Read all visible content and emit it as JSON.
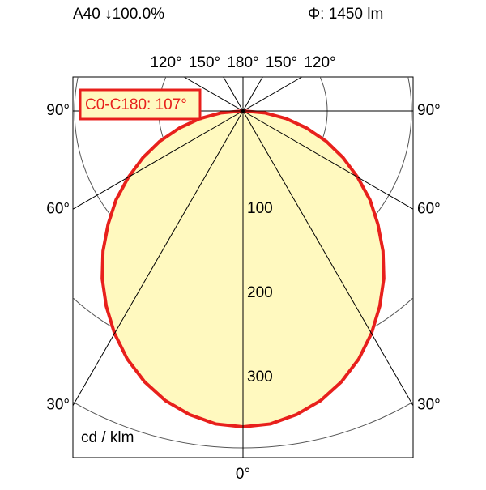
{
  "chart_data": {
    "type": "polar",
    "header_left": "A40 ↓100.0%",
    "header_right": "Φ: 1450 lm",
    "plane_label": "C0-C180: 107°",
    "unit_label": "cd / klm",
    "rlim": [
      0,
      400
    ],
    "rticks": [
      100,
      200,
      300
    ],
    "angle_ticks": [
      {
        "value": -90,
        "label": "90°"
      },
      {
        "value": -60,
        "label": "60°"
      },
      {
        "value": -30,
        "label": "30°"
      },
      {
        "value": 90,
        "label": "90°"
      },
      {
        "value": 60,
        "label": "60°"
      },
      {
        "value": 30,
        "label": "30°"
      },
      {
        "value": 0,
        "label": "0°"
      },
      {
        "value": -120,
        "label": "120°"
      },
      {
        "value": -150,
        "label": "150°"
      },
      {
        "value": 180,
        "label": "180°"
      },
      {
        "value": 150,
        "label": "150°"
      },
      {
        "value": 120,
        "label": "120°"
      }
    ],
    "series": [
      {
        "color": "#e8201c",
        "fill": "#fff9bf",
        "angles": [
          -90,
          -85,
          -80,
          -75,
          -70,
          -65,
          -60,
          -55,
          -50,
          -45,
          -40,
          -35,
          -30,
          -25,
          -20,
          -15,
          -10,
          -5,
          0,
          5,
          10,
          15,
          20,
          25,
          30,
          35,
          40,
          45,
          50,
          55,
          60,
          65,
          70,
          75,
          80,
          85,
          90
        ],
        "values": [
          0,
          26,
          52,
          78,
          105,
          131,
          157,
          184,
          209,
          235,
          260,
          283,
          305,
          325,
          342,
          356,
          366,
          373,
          375,
          373,
          366,
          356,
          342,
          325,
          305,
          283,
          260,
          235,
          209,
          184,
          157,
          131,
          105,
          78,
          52,
          26,
          0
        ]
      }
    ]
  }
}
